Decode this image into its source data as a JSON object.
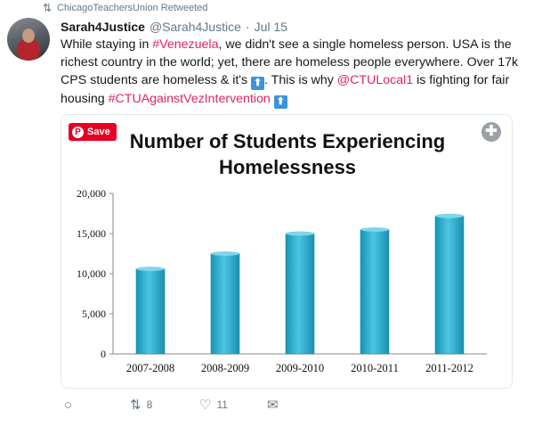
{
  "retweet": {
    "icon": "retweet-icon",
    "text": "ChicagoTeachersUnion Retweeted"
  },
  "tweet": {
    "name": "Sarah4Justice",
    "handle": "@Sarah4Justice",
    "separator": "·",
    "date": "Jul 15",
    "text": {
      "p1": "While staying in ",
      "tag1": "#Venezuela",
      "p2": ", we didn't see a single homeless person. USA is the richest country in the world; yet, there are homeless people everywhere. Over 17k CPS students are homeless & it's ",
      "p3": ". This is why ",
      "mention": "@CTULocal1",
      "p4": " is fighting for fair housing ",
      "tag2": "#CTUAgainstVezIntervention"
    },
    "emoji_up": "⬆"
  },
  "media": {
    "save_label": "Save",
    "pin_icon": "pinterest-icon",
    "expand_icon": "expand-icon"
  },
  "chart_data": {
    "type": "bar",
    "title": "Number of Students Experiencing Homelessness",
    "title_lines": [
      "Number of Students Experiencing",
      "Homelessness"
    ],
    "categories": [
      "2007-2008",
      "2008-2009",
      "2009-2010",
      "2010-2011",
      "2011-2012"
    ],
    "values": [
      10600,
      12500,
      15000,
      15500,
      17200
    ],
    "ylim": [
      0,
      20000
    ],
    "yticks": [
      0,
      5000,
      10000,
      15000,
      20000
    ],
    "ytick_labels": [
      "0",
      "5,000",
      "10,000",
      "15,000",
      "20,000"
    ],
    "xlabel": "",
    "ylabel": "",
    "grid": false,
    "bar_color": "#2aa9c9"
  },
  "actions": {
    "reply_icon": "reply-icon",
    "retweet_icon": "retweet-icon",
    "retweet_count": "8",
    "like_icon": "heart-icon",
    "like_count": "11",
    "dm_icon": "direct-message-icon"
  }
}
